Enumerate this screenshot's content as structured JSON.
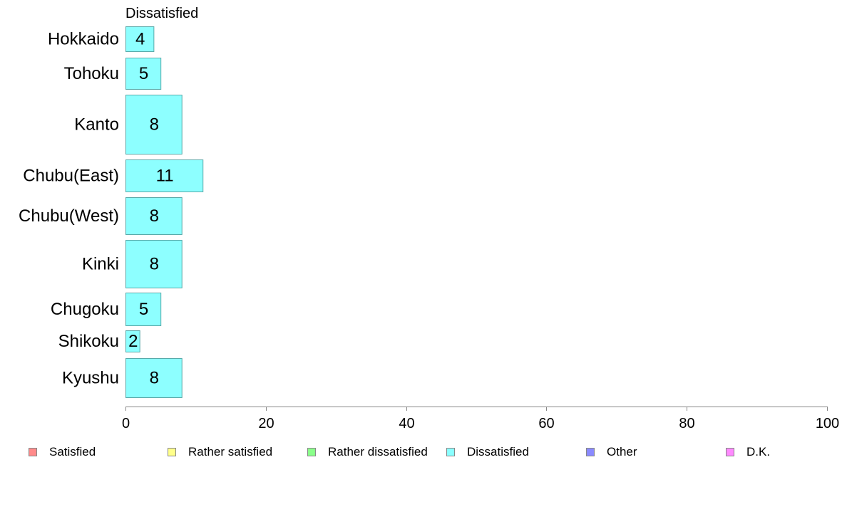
{
  "chart_data": {
    "type": "bar",
    "orientation": "horizontal",
    "title": "Dissatisfied",
    "categories": [
      "Hokkaido",
      "Tohoku",
      "Kanto",
      "Chubu(East)",
      "Chubu(West)",
      "Kinki",
      "Chugoku",
      "Shikoku",
      "Kyushu"
    ],
    "values": [
      4,
      5,
      8,
      11,
      8,
      8,
      5,
      2,
      8
    ],
    "value_labels": [
      "4",
      "5",
      "8",
      "11",
      "8",
      "8",
      "5",
      "2",
      "8"
    ],
    "xlim": [
      0,
      100
    ],
    "xticks": [
      "0",
      "20",
      "40",
      "60",
      "80",
      "100"
    ],
    "grid": false,
    "bar_color": "#8dffff",
    "bar_edge_color": "#5aa9a9",
    "legend": {
      "position": "bottom",
      "items": [
        {
          "label": "Satisfied",
          "color": "#ff8a8a"
        },
        {
          "label": "Rather satisfied",
          "color": "#ffff8a"
        },
        {
          "label": "Rather dissatisfied",
          "color": "#8aff8a"
        },
        {
          "label": "Dissatisfied",
          "color": "#8affff"
        },
        {
          "label": "Other",
          "color": "#8a8aff"
        },
        {
          "label": "D.K.",
          "color": "#ff8aff"
        }
      ]
    }
  }
}
